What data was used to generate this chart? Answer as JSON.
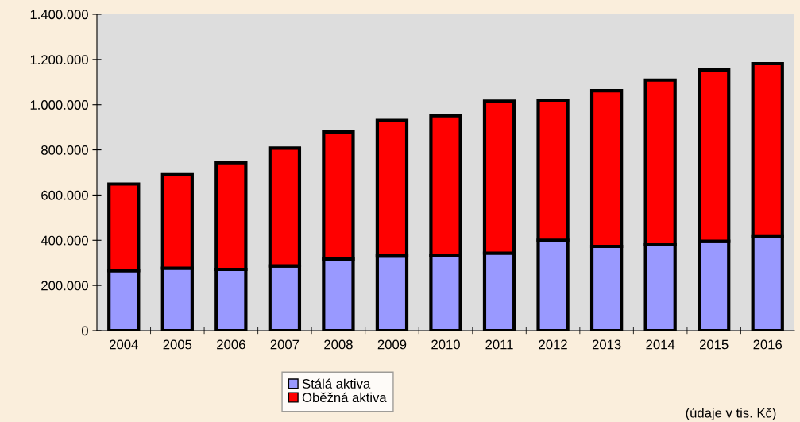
{
  "chart_data": {
    "type": "bar",
    "stacked": true,
    "categories": [
      "2004",
      "2005",
      "2006",
      "2007",
      "2008",
      "2009",
      "2010",
      "2011",
      "2012",
      "2013",
      "2014",
      "2015",
      "2016"
    ],
    "series": [
      {
        "name": "Stálá aktiva",
        "color": "#9999ff",
        "values": [
          266000,
          276000,
          271000,
          286000,
          316000,
          330000,
          333000,
          343000,
          400000,
          373000,
          380000,
          395000,
          416000
        ]
      },
      {
        "name": "Oběžná aktiva",
        "color": "#ff0000",
        "values": [
          383000,
          414000,
          472000,
          522000,
          564000,
          600000,
          618000,
          672000,
          620000,
          689000,
          729000,
          759000,
          766000
        ]
      }
    ],
    "ylim": [
      0,
      1400000
    ],
    "yticks": [
      {
        "value": 0,
        "label": "0"
      },
      {
        "value": 200000,
        "label": "200.000"
      },
      {
        "value": 400000,
        "label": "400.000"
      },
      {
        "value": 600000,
        "label": "600.000"
      },
      {
        "value": 800000,
        "label": "800.000"
      },
      {
        "value": 1000000,
        "label": "1.000.000"
      },
      {
        "value": 1200000,
        "label": "1.200.000"
      },
      {
        "value": 1400000,
        "label": "1.400.000"
      }
    ],
    "grid": false,
    "legend": "bottom",
    "annotations": [
      "(údaje v tis. Kč)"
    ]
  }
}
